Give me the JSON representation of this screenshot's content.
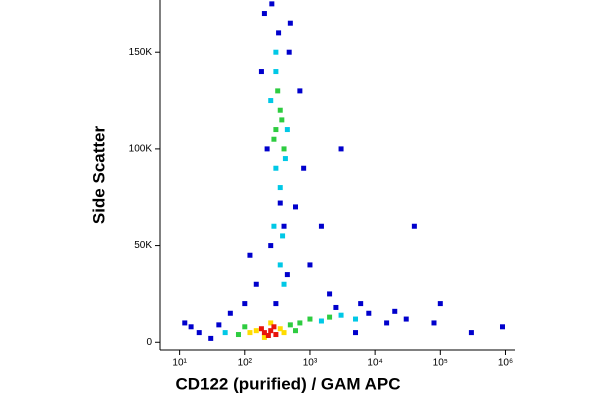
{
  "chart_data": {
    "type": "scatter",
    "x_label": "CD122 (purified) / GAM APC",
    "y_label": "Side Scatter",
    "x_log": true,
    "xlim": [
      5,
      1400000
    ],
    "xticks": [
      {
        "value": 10,
        "label": "10¹"
      },
      {
        "value": 100,
        "label": "10²"
      },
      {
        "value": 1000,
        "label": "10³"
      },
      {
        "value": 10000,
        "label": "10⁴"
      },
      {
        "value": 100000,
        "label": "10⁵"
      },
      {
        "value": 1000000,
        "label": "10⁶"
      }
    ],
    "ylim": [
      -4000,
      177000
    ],
    "yticks": [
      0,
      {
        "value": 50000,
        "label": "50K"
      },
      {
        "value": 100000,
        "label": "100K"
      },
      {
        "value": 150000,
        "label": "150K"
      }
    ],
    "series": [
      {
        "color": "#0000cc",
        "x": [
          20,
          15,
          30,
          8000,
          15000,
          30000,
          200,
          500,
          400,
          250,
          600,
          150,
          100,
          1000,
          2000,
          300,
          60,
          700,
          220,
          5000,
          300000,
          900000,
          80000,
          40000,
          100000,
          3000,
          1500,
          12,
          40,
          260,
          330,
          480,
          180,
          800,
          120,
          2500,
          20000,
          6000,
          450,
          350
        ],
        "values": [
          5000,
          8000,
          2000,
          15000,
          10000,
          12000,
          170000,
          165000,
          60000,
          50000,
          70000,
          30000,
          20000,
          40000,
          25000,
          20000,
          15000,
          130000,
          100000,
          5000,
          5000,
          8000,
          10000,
          60000,
          20000,
          100000,
          60000,
          10000,
          9000,
          175000,
          160000,
          150000,
          140000,
          90000,
          45000,
          18000,
          16000,
          20000,
          35000,
          72000
        ]
      },
      {
        "color": "#00c8e6",
        "x": [
          50,
          1500,
          3000,
          5000,
          300,
          350,
          300,
          400,
          350,
          300,
          450,
          280,
          380,
          250,
          420
        ],
        "values": [
          5000,
          11000,
          14000,
          12000,
          140000,
          80000,
          90000,
          30000,
          40000,
          150000,
          110000,
          60000,
          55000,
          125000,
          95000
        ]
      },
      {
        "color": "#2ecc40",
        "x": [
          100,
          500,
          600,
          80,
          700,
          300,
          350,
          400,
          320,
          1000,
          2000,
          280,
          370
        ],
        "values": [
          8000,
          9000,
          6000,
          4000,
          10000,
          110000,
          120000,
          100000,
          130000,
          12000,
          13000,
          105000,
          115000
        ]
      },
      {
        "color": "#ffdc00",
        "x": [
          150,
          350,
          120,
          400,
          250,
          200
        ],
        "values": [
          6000,
          7000,
          5000,
          5000,
          10000,
          2500
        ]
      },
      {
        "color": "#e8140a",
        "x": [
          200,
          250,
          300,
          180,
          230,
          280
        ],
        "values": [
          5000,
          6000,
          4000,
          7000,
          3500,
          8000
        ]
      }
    ]
  }
}
